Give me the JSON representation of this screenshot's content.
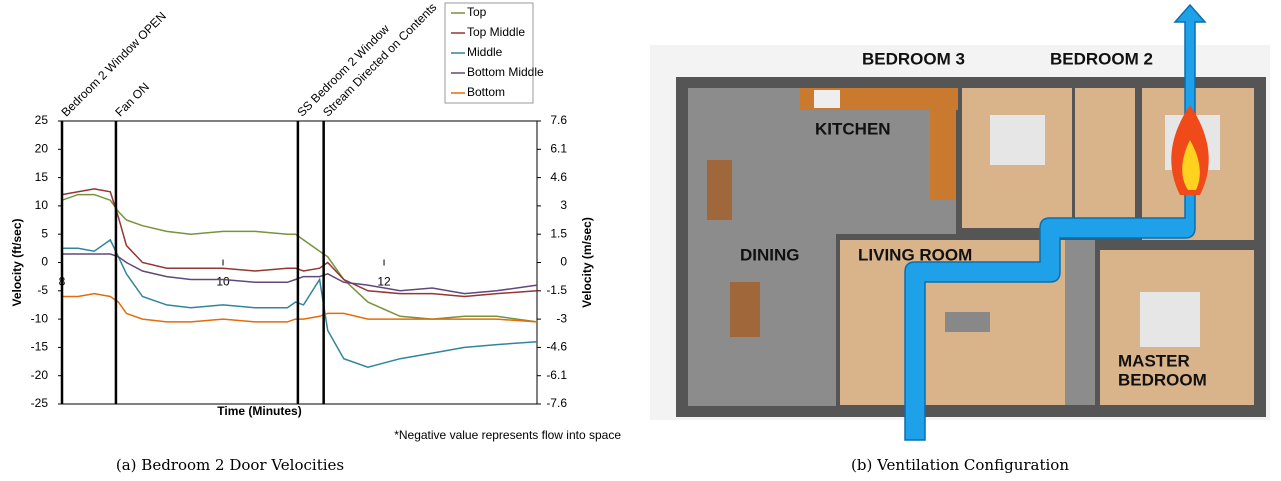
{
  "chart_data": {
    "type": "line",
    "y_label": "Velocity (ft/sec)",
    "y2_label": "Velocity (m/sec)",
    "x_label": "Time (Minutes)",
    "note": "*Negative value represents flow into space",
    "x": [
      8,
      8.2,
      8.4,
      8.6,
      8.7,
      8.8,
      9.0,
      9.3,
      9.6,
      10.0,
      10.4,
      10.8,
      10.9,
      11.0,
      11.2,
      11.3,
      11.5,
      11.8,
      12.2,
      12.6,
      13.0,
      13.4,
      13.9
    ],
    "xlim": [
      8,
      13.9
    ],
    "xticks": [
      8,
      10,
      12
    ],
    "ylim": [
      -25,
      25
    ],
    "yticks": [
      -25,
      -20,
      -15,
      -10,
      -5,
      0,
      5,
      10,
      15,
      20,
      25
    ],
    "y2lim": [
      -7.62,
      7.62
    ],
    "y2ticks": [
      {
        "value": -7.62,
        "label": "-7.6"
      },
      {
        "value": -6.096,
        "label": "-6.1"
      },
      {
        "value": -4.572,
        "label": "-4.6"
      },
      {
        "value": -3.048,
        "label": "-3"
      },
      {
        "value": -1.524,
        "label": "-1.5"
      },
      0,
      {
        "value": 1.524,
        "label": "1.5"
      },
      {
        "value": 3.048,
        "label": "3"
      },
      {
        "value": 4.572,
        "label": "4.6"
      },
      {
        "value": 6.096,
        "label": "6.1"
      },
      {
        "value": 7.62,
        "label": "7.6"
      }
    ],
    "events": [
      {
        "x": 8,
        "text": "Bedroom 2 Window OPEN"
      },
      {
        "x": 8.67,
        "text": "Fan ON"
      },
      {
        "x": 10.93,
        "text": "SS Bedroom 2 Window"
      },
      {
        "x": 11.25,
        "text": "Stream Directed on Contents"
      }
    ],
    "series": [
      {
        "name": "Top",
        "color": "#77933c",
        "values": [
          11,
          12,
          12,
          11,
          9,
          7.5,
          6.5,
          5.5,
          5,
          5.5,
          5.5,
          5,
          5,
          4,
          2,
          1,
          -3,
          -7,
          -9.5,
          -10,
          -9.5,
          -9.5,
          -10.5
        ]
      },
      {
        "name": "Top Middle",
        "color": "#943634",
        "values": [
          12,
          12.5,
          13,
          12.5,
          8,
          3,
          0,
          -1,
          -1,
          -1,
          -1.5,
          -1,
          -1,
          -1.5,
          -1,
          0,
          -3,
          -5,
          -5.5,
          -5.5,
          -6,
          -5.5,
          -5
        ]
      },
      {
        "name": "Middle",
        "color": "#31859c",
        "values": [
          2.5,
          2.5,
          2,
          4,
          1,
          -2,
          -6,
          -7.5,
          -8,
          -7.5,
          -8,
          -8,
          -7,
          -7.5,
          -3,
          -12,
          -17,
          -18.5,
          -17,
          -16,
          -15,
          -14.5,
          -14
        ]
      },
      {
        "name": "Bottom Middle",
        "color": "#60497a",
        "values": [
          1.5,
          1.5,
          1.5,
          1.5,
          1,
          0,
          -1.5,
          -2.5,
          -3,
          -3,
          -3.5,
          -3.5,
          -3,
          -2.5,
          -2.5,
          -2,
          -3.5,
          -4,
          -5,
          -4.5,
          -5.5,
          -5,
          -4
        ]
      },
      {
        "name": "Bottom",
        "color": "#e46c0a",
        "values": [
          -6,
          -6,
          -5.5,
          -6,
          -7,
          -9,
          -10,
          -10.5,
          -10.5,
          -10,
          -10.5,
          -10.5,
          -10,
          -10,
          -9.5,
          -9,
          -9,
          -10,
          -10,
          -10,
          -10,
          -10,
          -10.5
        ]
      }
    ]
  },
  "floor_plan": {
    "labels": [
      "BEDROOM 3",
      "BEDROOM 2",
      "KITCHEN",
      "DINING",
      "LIVING ROOM",
      "MASTER",
      "BEDROOM"
    ]
  },
  "captions": [
    "(a) Bedroom 2 Door Velocities",
    "(b) Ventilation Configuration"
  ]
}
